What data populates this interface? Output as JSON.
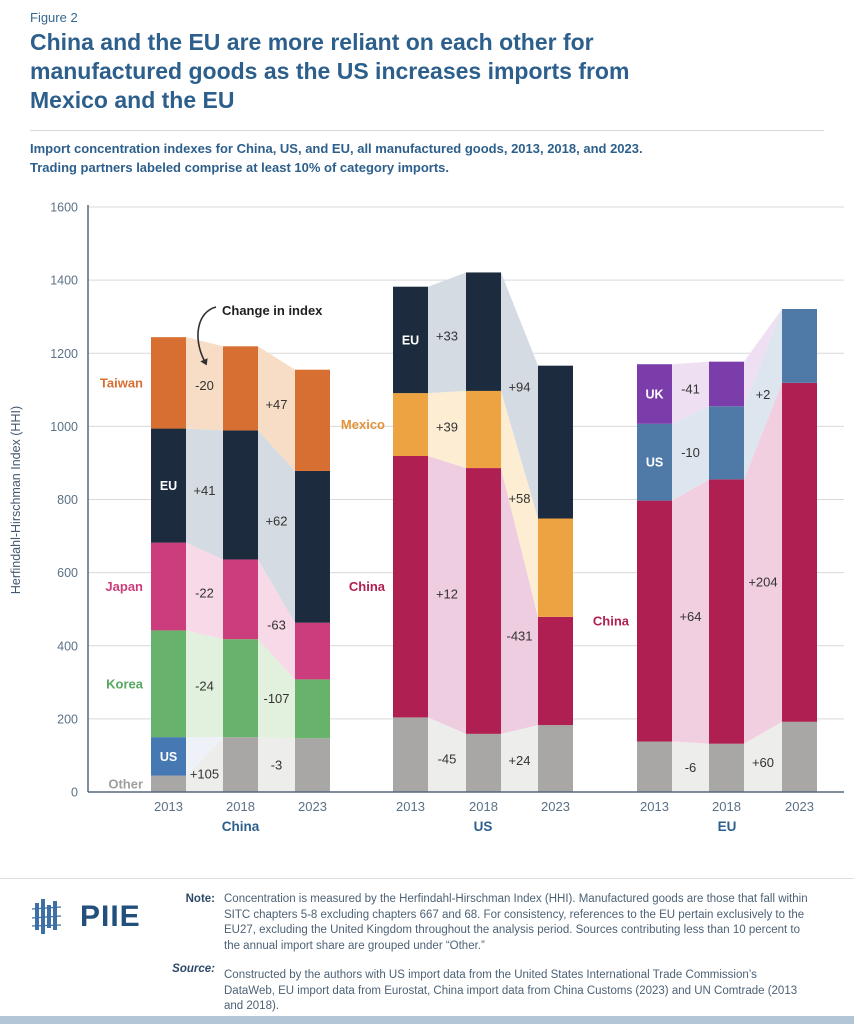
{
  "figure": {
    "label": "Figure 2",
    "title": "China and the EU are more reliant on each other for\nmanufactured goods as the US increases imports from\nMexico and the EU",
    "subtitle": "Import concentration indexes for China, US, and EU, all manufactured goods, 2013, 2018, and 2023.\nTrading partners labeled comprise at least 10% of category imports."
  },
  "chart_data": {
    "type": "bar",
    "variant": "stacked-bars-with-flow-bands",
    "ylabel": "Herfindahl-Hirschman Index (HHI)",
    "ylim": [
      0,
      1600
    ],
    "ytick_step": 200,
    "grid": true,
    "annotation": "Change in index",
    "years": [
      "2013",
      "2018",
      "2023"
    ],
    "groups": [
      {
        "label": "China",
        "segments": [
          {
            "name": "Other",
            "color": "#a8a7a5",
            "tint": "#ededec",
            "label_pos": "outside",
            "label_color": "#a09f9d",
            "values": [
              45,
              150,
              147
            ],
            "changes": [
              "+105",
              "-3"
            ]
          },
          {
            "name": "US",
            "color": "#4679b4",
            "tint": "#eef2f8",
            "label_pos": "inside",
            "label_color": "#ffffff",
            "values": [
              105,
              0,
              0
            ],
            "changes": [
              null,
              null
            ]
          },
          {
            "name": "Korea",
            "color": "#68b36b",
            "tint": "#e2f0de",
            "label_pos": "outside",
            "label_color": "#56a85f",
            "values": [
              292,
              268,
              161
            ],
            "changes": [
              "-24",
              "-107"
            ]
          },
          {
            "name": "Japan",
            "color": "#cc3d7d",
            "tint": "#f8d9e8",
            "label_pos": "outside",
            "label_color": "#cc3d7d",
            "values": [
              240,
              218,
              155
            ],
            "changes": [
              "-22",
              "-63"
            ]
          },
          {
            "name": "EU",
            "color": "#1c2b3e",
            "tint": "#d5dbe2",
            "label_pos": "inside",
            "label_color": "#ffffff",
            "values": [
              312,
              353,
              415
            ],
            "changes": [
              "+41",
              "+62"
            ]
          },
          {
            "name": "Taiwan",
            "color": "#d76f33",
            "tint": "#f8ddc6",
            "label_pos": "outside",
            "label_color": "#d76f33",
            "values": [
              250,
              230,
              277
            ],
            "changes": [
              "-20",
              "+47"
            ]
          }
        ]
      },
      {
        "label": "US",
        "segments": [
          {
            "name": "Other",
            "color": "#a8a7a5",
            "tint": "#ededec",
            "label_pos": "none",
            "label_color": "#a09f9d",
            "values": [
              204,
              159,
              183
            ],
            "changes": [
              "-45",
              "+24"
            ]
          },
          {
            "name": "China",
            "color": "#b01f51",
            "tint": "#efcde0",
            "label_pos": "outside",
            "label_color": "#b01f51",
            "values": [
              715,
              727,
              296
            ],
            "changes": [
              "+12",
              "-431"
            ]
          },
          {
            "name": "Mexico",
            "color": "#eda342",
            "tint": "#fdeed3",
            "label_pos": "outside",
            "label_color": "#e2933a",
            "values": [
              172,
              211,
              269
            ],
            "changes": [
              "+39",
              "+58"
            ]
          },
          {
            "name": "EU",
            "color": "#1c2b3e",
            "tint": "#d5dbe2",
            "label_pos": "inside",
            "label_color": "#ffffff",
            "values": [
              291,
              324,
              418
            ],
            "changes": [
              "+33",
              "+94"
            ]
          }
        ]
      },
      {
        "label": "EU",
        "segments": [
          {
            "name": "Other",
            "color": "#a8a7a5",
            "tint": "#ededec",
            "label_pos": "none",
            "label_color": "#a09f9d",
            "values": [
              138,
              132,
              192
            ],
            "changes": [
              "-6",
              "+60"
            ]
          },
          {
            "name": "China",
            "color": "#b01f51",
            "tint": "#f2cfe0",
            "label_pos": "outside",
            "label_color": "#b01f51",
            "values": [
              659,
              723,
              927
            ],
            "changes": [
              "+64",
              "+204"
            ]
          },
          {
            "name": "US",
            "color": "#4f7aa8",
            "tint": "#dde6ef",
            "label_pos": "inside",
            "label_color": "#ffffff",
            "values": [
              210,
              200,
              202
            ],
            "changes": [
              "-10",
              "+2"
            ]
          },
          {
            "name": "UK",
            "color": "#7a3daa",
            "tint": "#eee0f2",
            "label_pos": "inside",
            "label_color": "#ffffff",
            "values": [
              163,
              122,
              0
            ],
            "changes": [
              "-41",
              null
            ]
          }
        ]
      }
    ]
  },
  "footer": {
    "logo_text": "PIIE",
    "note_label": "Note:",
    "note_text": "Concentration is measured by the Herfindahl-Hirschman Index (HHI). Manufactured goods are those that fall within SITC chapters 5-8 excluding chapters 667 and 68. For consistency, references to the EU pertain exclusively to the EU27, excluding the United Kingdom throughout the analysis period. Sources contributing less than 10 percent to the annual import share are grouped under “Other.”",
    "source_label": "Source:",
    "source_text": "Constructed by the authors with US import data from the United States International Trade Commission’s DataWeb, EU import data from Eurostat, China import data from China Customs (2023) and UN Comtrade (2013 and 2018)."
  },
  "colors": {
    "accent_navy": "#2d5f8c",
    "slate_text": "#5b7186",
    "grid_line": "#d9d9d9",
    "axis_line": "#53687d",
    "change_label": "#333333"
  }
}
